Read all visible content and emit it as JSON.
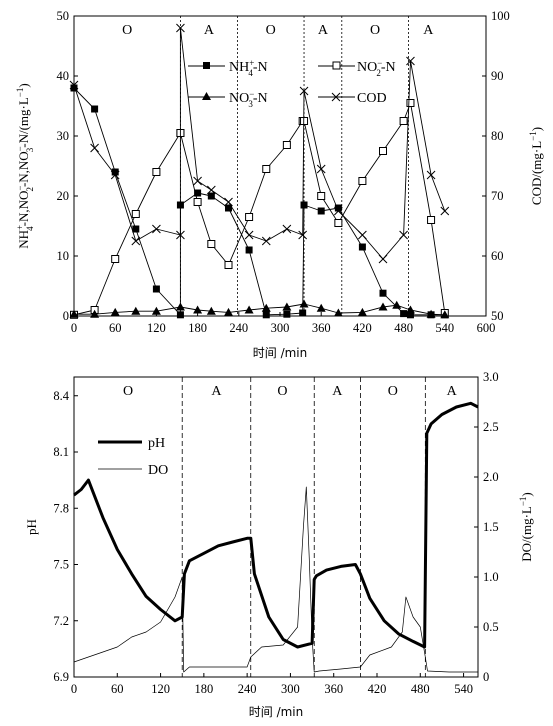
{
  "chart_data": [
    {
      "type": "line",
      "title": "",
      "xlabel": "时间 /min",
      "ylabel": "NH4+-N,NO2−-N,NO3−-N/(mg·L−1)",
      "ylabel_right": "COD/(mg·L−1)",
      "xlim": [
        0,
        600
      ],
      "ylim": [
        0,
        50
      ],
      "ylim_right": [
        50,
        100
      ],
      "xticks": [
        "0",
        "60",
        "120",
        "180",
        "240",
        "300",
        "360",
        "420",
        "480",
        "540",
        "600"
      ],
      "yticks": [
        "0",
        "10",
        "20",
        "30",
        "40",
        "50"
      ],
      "yticks_right": [
        "50",
        "60",
        "70",
        "80",
        "90",
        "100"
      ],
      "phases": [
        {
          "label": "O",
          "start": 0,
          "end": 155
        },
        {
          "label": "A",
          "start": 155,
          "end": 238
        },
        {
          "label": "O",
          "start": 238,
          "end": 335
        },
        {
          "label": "A",
          "start": 335,
          "end": 390
        },
        {
          "label": "O",
          "start": 390,
          "end": 487
        },
        {
          "label": "A",
          "start": 487,
          "end": 545
        }
      ],
      "phase_boundaries": [
        155,
        238,
        335,
        390,
        487
      ],
      "legend": [
        "NH4+-N",
        "NO2−-N",
        "NO3−-N",
        "COD"
      ],
      "series": [
        {
          "name": "NH4+-N",
          "axis": "left",
          "marker": "filled-square",
          "x": [
            0,
            30,
            60,
            90,
            120,
            155,
            155,
            180,
            200,
            225,
            255,
            280,
            310,
            333,
            335,
            360,
            385,
            420,
            450,
            480,
            490,
            520,
            540
          ],
          "y": [
            38,
            34.5,
            24,
            14.5,
            4.5,
            0.2,
            18.5,
            20.5,
            20,
            18,
            11,
            0.2,
            0.3,
            0.5,
            18.5,
            17.5,
            18,
            11.5,
            3.8,
            0.4,
            0.2,
            0.2,
            0.2
          ]
        },
        {
          "name": "NO2−-N",
          "axis": "left",
          "marker": "open-square",
          "x": [
            0,
            30,
            60,
            90,
            120,
            155,
            155,
            180,
            200,
            225,
            255,
            280,
            310,
            333,
            335,
            360,
            385,
            420,
            450,
            480,
            490,
            520,
            540
          ],
          "y": [
            0.2,
            1,
            9.5,
            17,
            24,
            30.5,
            30.5,
            19,
            12,
            8.5,
            16.5,
            24.5,
            28.5,
            32.5,
            32.5,
            20,
            15.5,
            22.5,
            27.5,
            32.5,
            35.5,
            16,
            0.5
          ]
        },
        {
          "name": "NO3−-N",
          "axis": "left",
          "marker": "filled-triangle",
          "x": [
            0,
            30,
            60,
            90,
            120,
            155,
            180,
            200,
            225,
            255,
            280,
            310,
            335,
            360,
            385,
            420,
            450,
            470,
            490,
            520,
            540
          ],
          "y": [
            0.3,
            0.3,
            0.6,
            0.8,
            0.8,
            1.5,
            1,
            0.8,
            0.6,
            1,
            1.3,
            1.5,
            2,
            1.3,
            0.5,
            0.6,
            1.5,
            1.8,
            1,
            0.3,
            0.2
          ]
        },
        {
          "name": "COD",
          "axis": "right",
          "marker": "x",
          "x": [
            0,
            30,
            60,
            90,
            120,
            155,
            155,
            180,
            200,
            225,
            255,
            280,
            310,
            333,
            335,
            360,
            385,
            420,
            450,
            480,
            490,
            520,
            540
          ],
          "y": [
            88.5,
            78,
            73.5,
            62.5,
            64.5,
            63.5,
            98,
            72.5,
            71,
            69,
            63.5,
            62.5,
            64.5,
            63.5,
            87.5,
            74.5,
            67.5,
            63.5,
            59.5,
            63.5,
            92.5,
            73.5,
            67.5
          ]
        }
      ]
    },
    {
      "type": "line",
      "title": "",
      "xlabel": "时间 /min",
      "ylabel": "pH",
      "ylabel_right": "DO/(mg·L−1)",
      "xlim": [
        0,
        560
      ],
      "ylim": [
        6.9,
        8.5
      ],
      "ylim_right": [
        0,
        3.0
      ],
      "xticks": [
        "0",
        "60",
        "120",
        "180",
        "240",
        "300",
        "360",
        "420",
        "480",
        "540"
      ],
      "yticks": [
        "6.9",
        "7.2",
        "7.5",
        "7.8",
        "8.1",
        "8.4"
      ],
      "yticks_right": [
        "0",
        "0.5",
        "1.0",
        "1.5",
        "2.0",
        "2.5",
        "3.0"
      ],
      "phases": [
        {
          "label": "O",
          "start": 0,
          "end": 150
        },
        {
          "label": "A",
          "start": 150,
          "end": 245
        },
        {
          "label": "O",
          "start": 245,
          "end": 333
        },
        {
          "label": "A",
          "start": 333,
          "end": 397
        },
        {
          "label": "O",
          "start": 397,
          "end": 487
        },
        {
          "label": "A",
          "start": 487,
          "end": 560
        }
      ],
      "phase_boundaries": [
        150,
        245,
        333,
        397,
        487
      ],
      "legend": [
        "pH",
        "DO"
      ],
      "series": [
        {
          "name": "pH",
          "axis": "left",
          "style": "thick",
          "x": [
            0,
            10,
            20,
            40,
            60,
            80,
            100,
            120,
            140,
            150,
            153,
            160,
            180,
            200,
            220,
            240,
            245,
            250,
            270,
            290,
            310,
            330,
            333,
            336,
            350,
            370,
            390,
            397,
            410,
            430,
            450,
            470,
            486,
            489,
            495,
            510,
            530,
            550,
            560
          ],
          "y": [
            7.87,
            7.9,
            7.95,
            7.75,
            7.58,
            7.45,
            7.33,
            7.26,
            7.2,
            7.22,
            7.45,
            7.52,
            7.56,
            7.6,
            7.62,
            7.64,
            7.64,
            7.45,
            7.22,
            7.1,
            7.06,
            7.08,
            7.42,
            7.44,
            7.47,
            7.49,
            7.5,
            7.45,
            7.32,
            7.2,
            7.13,
            7.09,
            7.06,
            8.2,
            8.25,
            8.3,
            8.34,
            8.36,
            8.34
          ]
        },
        {
          "name": "DO",
          "axis": "right",
          "style": "thin",
          "x": [
            0,
            20,
            40,
            60,
            80,
            100,
            120,
            140,
            150,
            152,
            160,
            200,
            240,
            245,
            260,
            290,
            310,
            318,
            322,
            326,
            330,
            333,
            340,
            370,
            397,
            410,
            440,
            455,
            460,
            470,
            480,
            487,
            490,
            520,
            560
          ],
          "y": [
            0.15,
            0.2,
            0.25,
            0.3,
            0.4,
            0.45,
            0.55,
            0.8,
            1.0,
            0.05,
            0.1,
            0.1,
            0.1,
            0.2,
            0.3,
            0.32,
            0.5,
            1.5,
            1.9,
            1.2,
            0.4,
            0.05,
            0.06,
            0.08,
            0.1,
            0.22,
            0.3,
            0.45,
            0.8,
            0.6,
            0.5,
            0.2,
            0.06,
            0.05,
            0.05
          ]
        }
      ]
    }
  ]
}
